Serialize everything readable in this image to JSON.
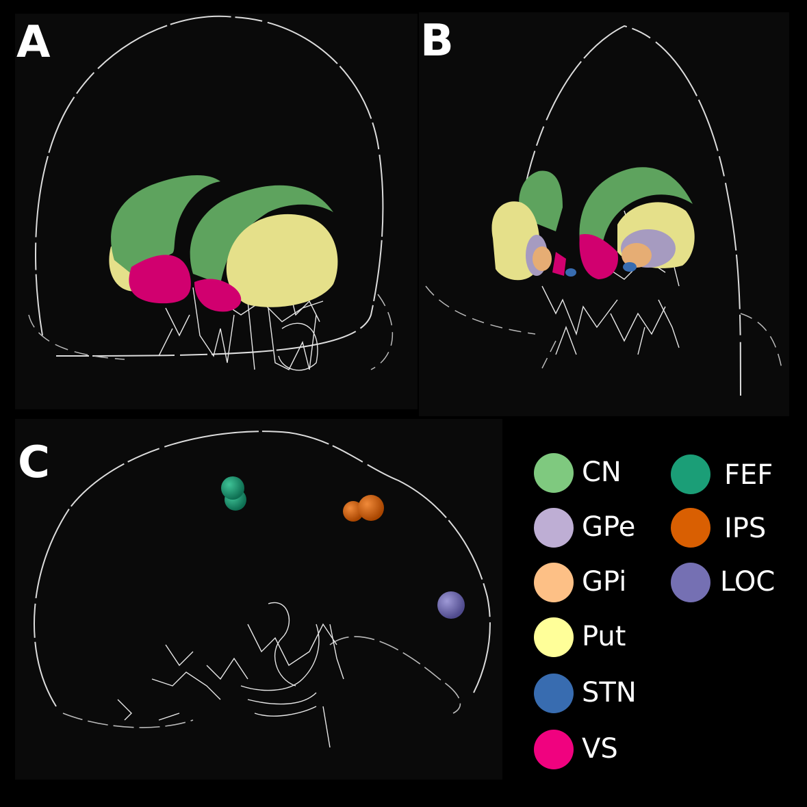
{
  "panels": {
    "a_label": "A",
    "b_label": "B",
    "c_label": "C"
  },
  "colors": {
    "CN": "#7fc97f",
    "GPe": "#beaed4",
    "GPi": "#fdc086",
    "Put": "#ffff99",
    "STN": "#386cb0",
    "VS": "#f0027f",
    "FEF": "#1b9e77",
    "IPS": "#d95f02",
    "LOC": "#7570b3",
    "rendered_CN": "#5ea35e",
    "rendered_Put": "#e5e08a",
    "rendered_VS": "#d1006f",
    "rendered_GPe": "#a69bc0",
    "rendered_GPi": "#e6ad74"
  },
  "legend": {
    "col1": [
      "CN",
      "GPe",
      "GPi",
      "Put",
      "STN",
      "VS"
    ],
    "col2": [
      "FEF",
      "IPS",
      "LOC"
    ]
  }
}
